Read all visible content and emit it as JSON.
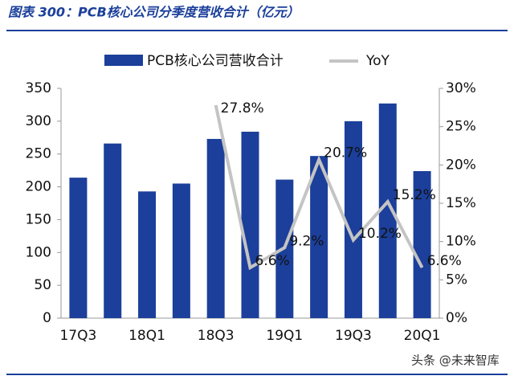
{
  "chart_data": {
    "type": "bar-line",
    "title": "图表 300：PCB核心公司分季度营收合计（亿元）",
    "watermark": "头条 @未来智库",
    "categories": [
      "17Q3",
      null,
      "18Q1",
      null,
      "18Q3",
      null,
      "19Q1",
      null,
      "19Q3",
      null,
      "20Q1"
    ],
    "series": [
      {
        "name": "PCB核心公司营收合计",
        "color": "#1b3f9a",
        "type": "bar",
        "values": [
          214,
          266,
          193,
          205,
          273,
          284,
          211,
          247,
          300,
          327,
          224
        ]
      },
      {
        "name": "YoY",
        "color": "#c4c4c4",
        "type": "line",
        "axis": "y2",
        "values": [
          null,
          null,
          null,
          null,
          27.8,
          6.6,
          9.2,
          20.7,
          10.2,
          15.2,
          6.6
        ],
        "value_labels": [
          null,
          null,
          null,
          null,
          "27.8%",
          "6.6%",
          "9.2%",
          "20.7%",
          "10.2%",
          "15.2%",
          "6.6%"
        ]
      }
    ],
    "ylim": [
      0,
      350
    ],
    "yticks": [
      0,
      50,
      100,
      150,
      200,
      250,
      300,
      350
    ],
    "y2lim": [
      0,
      30
    ],
    "y2ticks": [
      {
        "value": 0,
        "label": "0%"
      },
      {
        "value": 5,
        "label": "5%"
      },
      {
        "value": 10,
        "label": "10%"
      },
      {
        "value": 15,
        "label": "15%"
      },
      {
        "value": 20,
        "label": "20%"
      },
      {
        "value": 25,
        "label": "25%"
      },
      {
        "value": 30,
        "label": "30%"
      }
    ],
    "legend": "top"
  }
}
